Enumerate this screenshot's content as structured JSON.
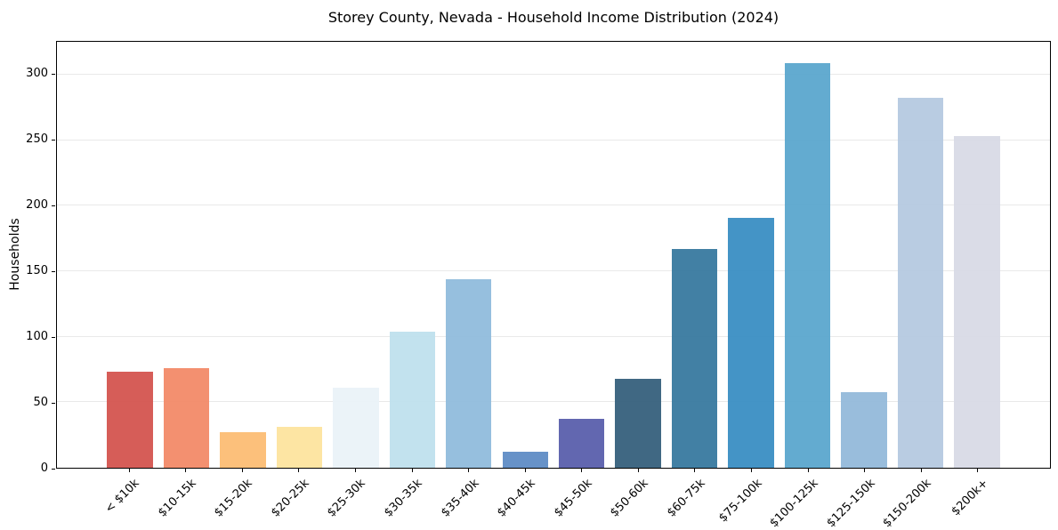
{
  "chart_data": {
    "type": "bar",
    "title": "Storey County, Nevada - Household Income Distribution (2024)",
    "xlabel": "",
    "ylabel": "Households",
    "categories": [
      "< $10k",
      "$10-15k",
      "$15-20k",
      "$20-25k",
      "$25-30k",
      "$30-35k",
      "$35-40k",
      "$40-45k",
      "$45-50k",
      "$50-60k",
      "$60-75k",
      "$75-100k",
      "$100-125k",
      "$125-150k",
      "$150-200k",
      "$200k+"
    ],
    "values": [
      73,
      76,
      27,
      31,
      61,
      104,
      144,
      12,
      37,
      68,
      167,
      191,
      309,
      58,
      282,
      253
    ],
    "bar_colors": [
      "#d4544f",
      "#f28a68",
      "#fcbd74",
      "#fde49e",
      "#eaf2f8",
      "#bfe0ed",
      "#90bcdc",
      "#5f8cc5",
      "#5a5fac",
      "#36607c",
      "#38799f",
      "#3a8ec3",
      "#5ba7ce",
      "#93b9da",
      "#b5c9e0",
      "#d8dae6"
    ],
    "yticks": [
      0,
      50,
      100,
      150,
      200,
      250,
      300
    ],
    "ylim": [
      0,
      325
    ],
    "grid": "horizontal",
    "gridline_color": "#e9e9e9",
    "background": "#ffffff",
    "spine_color": "#000000",
    "legend": "none"
  }
}
